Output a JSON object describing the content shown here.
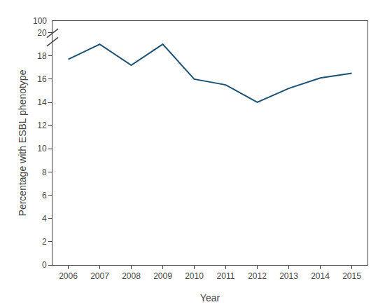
{
  "chart_data": {
    "type": "line",
    "x": [
      2006,
      2007,
      2008,
      2009,
      2010,
      2011,
      2012,
      2013,
      2014,
      2015
    ],
    "values": [
      17.7,
      19.0,
      17.2,
      19.0,
      16.0,
      15.5,
      14.0,
      15.2,
      16.1,
      16.5
    ],
    "color": "#1a5276",
    "xlabel": "Year",
    "ylabel": "Percentage with ESBL phenotype",
    "xlim": [
      2005.5,
      2015.5
    ],
    "ylim": [
      0,
      21
    ],
    "xticks": [
      2006,
      2007,
      2008,
      2009,
      2010,
      2011,
      2012,
      2013,
      2014,
      2015
    ],
    "yticks": [
      0,
      2,
      4,
      6,
      8,
      10,
      12,
      14,
      16,
      18,
      20
    ],
    "grid": false,
    "annotations": [
      "100"
    ]
  }
}
